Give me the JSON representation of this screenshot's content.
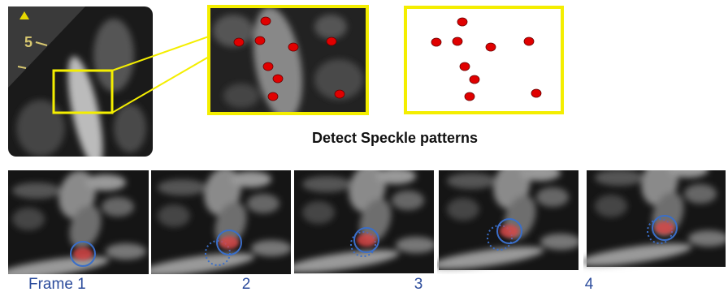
{
  "image_label": "5",
  "caption": "Detect Speckle patterns",
  "frame_labels": [
    "Frame 1",
    "2",
    "3",
    "4"
  ]
}
